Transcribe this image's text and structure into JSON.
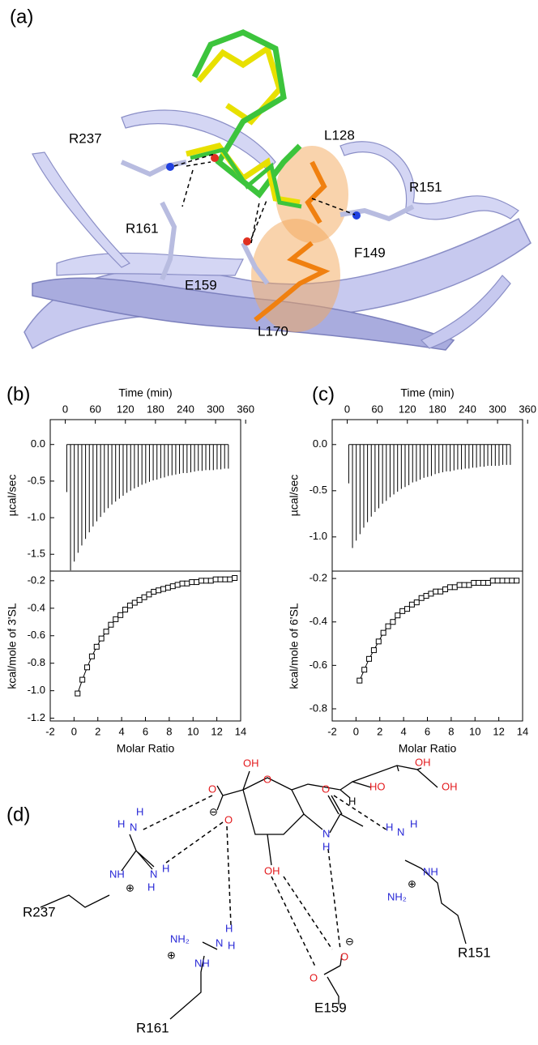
{
  "panels": {
    "a": "(a)",
    "b": "(b)",
    "c": "(c)",
    "d": "(d)"
  },
  "structure": {
    "labels": [
      "R237",
      "L128",
      "R151",
      "R161",
      "F149",
      "E159",
      "L170"
    ]
  },
  "chart_data": [
    {
      "type": "spike",
      "x_label": "Time (min)",
      "y_label": "µcal/sec",
      "xaxis": "top",
      "color": "#000000",
      "x": [
        3,
        10.5,
        18,
        25.5,
        33,
        40.5,
        48,
        55.5,
        63,
        70.5,
        78,
        85.5,
        93,
        100.5,
        108,
        115.5,
        123,
        130.5,
        138,
        145.5,
        153,
        160.5,
        168,
        175.5,
        183,
        190.5,
        198,
        205.5,
        213,
        220.5,
        228,
        235.5,
        243,
        250.5,
        258,
        265.5,
        273,
        280.5,
        288,
        295.5,
        303,
        310.5,
        318,
        325.5
      ],
      "values": [
        -0.65,
        -1.72,
        -1.6,
        -1.48,
        -1.38,
        -1.29,
        -1.2,
        -1.12,
        -1.05,
        -0.99,
        -0.93,
        -0.87,
        -0.82,
        -0.78,
        -0.74,
        -0.7,
        -0.66,
        -0.63,
        -0.6,
        -0.58,
        -0.55,
        -0.53,
        -0.51,
        -0.49,
        -0.48,
        -0.46,
        -0.45,
        -0.43,
        -0.42,
        -0.41,
        -0.4,
        -0.39,
        -0.39,
        -0.38,
        -0.37,
        -0.36,
        -0.36,
        -0.35,
        -0.35,
        -0.35,
        -0.34,
        -0.34,
        -0.33,
        -0.33
      ],
      "xlim": [
        -30,
        350
      ],
      "xticks": [
        0,
        60,
        120,
        180,
        240,
        300,
        360
      ],
      "ylim": [
        -1.73,
        0.34
      ],
      "yticks": [
        {
          "value": 0,
          "label": "0.0"
        },
        -0.5,
        {
          "value": -1,
          "label": "-1.0"
        },
        -1.5
      ]
    },
    {
      "type": "scatter",
      "x_label": "Molar Ratio",
      "y_label": "kcal/mole of 3'SL",
      "xaxis": "bottom",
      "color": "#000000",
      "line": true,
      "x": [
        0.3,
        0.7,
        1.1,
        1.5,
        1.9,
        2.3,
        2.7,
        3.1,
        3.5,
        3.9,
        4.3,
        4.7,
        5.1,
        5.5,
        5.9,
        6.3,
        6.7,
        7.1,
        7.5,
        7.9,
        8.3,
        8.7,
        9.1,
        9.5,
        9.9,
        10.3,
        10.7,
        11.1,
        11.5,
        11.9,
        12.3,
        12.7,
        13.1,
        13.5
      ],
      "values": [
        -1.02,
        -0.92,
        -0.83,
        -0.75,
        -0.68,
        -0.62,
        -0.57,
        -0.52,
        -0.48,
        -0.45,
        -0.41,
        -0.38,
        -0.36,
        -0.34,
        -0.32,
        -0.3,
        -0.28,
        -0.27,
        -0.26,
        -0.25,
        -0.24,
        -0.23,
        -0.22,
        -0.22,
        -0.21,
        -0.21,
        -0.2,
        -0.2,
        -0.2,
        -0.19,
        -0.19,
        -0.19,
        -0.19,
        -0.18
      ],
      "xlim": [
        -2,
        14
      ],
      "xticks": [
        -2,
        0,
        2,
        4,
        6,
        8,
        10,
        12,
        14
      ],
      "ylim": [
        -1.22,
        -0.13
      ],
      "yticks": [
        -0.2,
        -0.4,
        -0.6,
        -0.8,
        {
          "value": -1,
          "label": "-1.0"
        },
        -1.2
      ]
    },
    {
      "type": "spike",
      "x_label": "Time (min)",
      "y_label": "µcal/sec",
      "xaxis": "top",
      "color": "#000000",
      "x": [
        3,
        10.5,
        18,
        25.5,
        33,
        40.5,
        48,
        55.5,
        63,
        70.5,
        78,
        85.5,
        93,
        100.5,
        108,
        115.5,
        123,
        130.5,
        138,
        145.5,
        153,
        160.5,
        168,
        175.5,
        183,
        190.5,
        198,
        205.5,
        213,
        220.5,
        228,
        235.5,
        243,
        250.5,
        258,
        265.5,
        273,
        280.5,
        288,
        295.5,
        303,
        310.5,
        318,
        325.5
      ],
      "values": [
        -0.42,
        -1.12,
        -1.04,
        -0.97,
        -0.9,
        -0.84,
        -0.78,
        -0.73,
        -0.69,
        -0.64,
        -0.61,
        -0.57,
        -0.54,
        -0.51,
        -0.48,
        -0.46,
        -0.44,
        -0.41,
        -0.4,
        -0.38,
        -0.36,
        -0.35,
        -0.34,
        -0.32,
        -0.31,
        -0.3,
        -0.29,
        -0.29,
        -0.28,
        -0.27,
        -0.27,
        -0.26,
        -0.26,
        -0.25,
        -0.25,
        -0.24,
        -0.24,
        -0.23,
        -0.23,
        -0.23,
        -0.23,
        -0.22,
        -0.22,
        -0.22
      ],
      "xlim": [
        -30,
        350
      ],
      "xticks": [
        0,
        60,
        120,
        180,
        240,
        300,
        360
      ],
      "ylim": [
        -1.37,
        0.27
      ],
      "yticks": [
        {
          "value": 0,
          "label": "0.0"
        },
        -0.5,
        {
          "value": -1,
          "label": "-1.0"
        }
      ]
    },
    {
      "type": "scatter",
      "x_label": "Molar Ratio",
      "y_label": "kcal/mole of 6'SL",
      "xaxis": "bottom",
      "color": "#000000",
      "line": true,
      "x": [
        0.3,
        0.7,
        1.1,
        1.5,
        1.9,
        2.3,
        2.7,
        3.1,
        3.5,
        3.9,
        4.3,
        4.7,
        5.1,
        5.5,
        5.9,
        6.3,
        6.7,
        7.1,
        7.5,
        7.9,
        8.3,
        8.7,
        9.1,
        9.5,
        9.9,
        10.3,
        10.7,
        11.1,
        11.5,
        11.9,
        12.3,
        12.7,
        13.1,
        13.5
      ],
      "values": [
        -0.67,
        -0.62,
        -0.57,
        -0.53,
        -0.49,
        -0.45,
        -0.42,
        -0.4,
        -0.37,
        -0.35,
        -0.34,
        -0.32,
        -0.31,
        -0.29,
        -0.28,
        -0.27,
        -0.26,
        -0.26,
        -0.25,
        -0.24,
        -0.24,
        -0.23,
        -0.23,
        -0.23,
        -0.22,
        -0.22,
        -0.22,
        -0.22,
        -0.21,
        -0.21,
        -0.21,
        -0.21,
        -0.21,
        -0.21
      ],
      "xlim": [
        -2,
        14
      ],
      "xticks": [
        -2,
        0,
        2,
        4,
        6,
        8,
        10,
        12,
        14
      ],
      "ylim": [
        -0.856,
        -0.166
      ],
      "yticks": [
        -0.2,
        -0.4,
        -0.6,
        -0.8
      ]
    }
  ],
  "diagram": {
    "residues": [
      "R237",
      "R161",
      "R151",
      "E159"
    ],
    "atoms": [
      "OH",
      "O",
      "HO",
      "OH",
      "OH",
      "H",
      "O",
      "O",
      "⊖",
      "O",
      "N",
      "H",
      "OH",
      "H",
      "N",
      "H",
      "NH",
      "⊕",
      "N",
      "H",
      "H",
      "NH₂",
      "⊕",
      "H",
      "N",
      "H",
      "NH",
      "H",
      "N",
      "H",
      "NH₂",
      "⊕",
      "NH",
      "⊖",
      "O",
      "O"
    ]
  }
}
